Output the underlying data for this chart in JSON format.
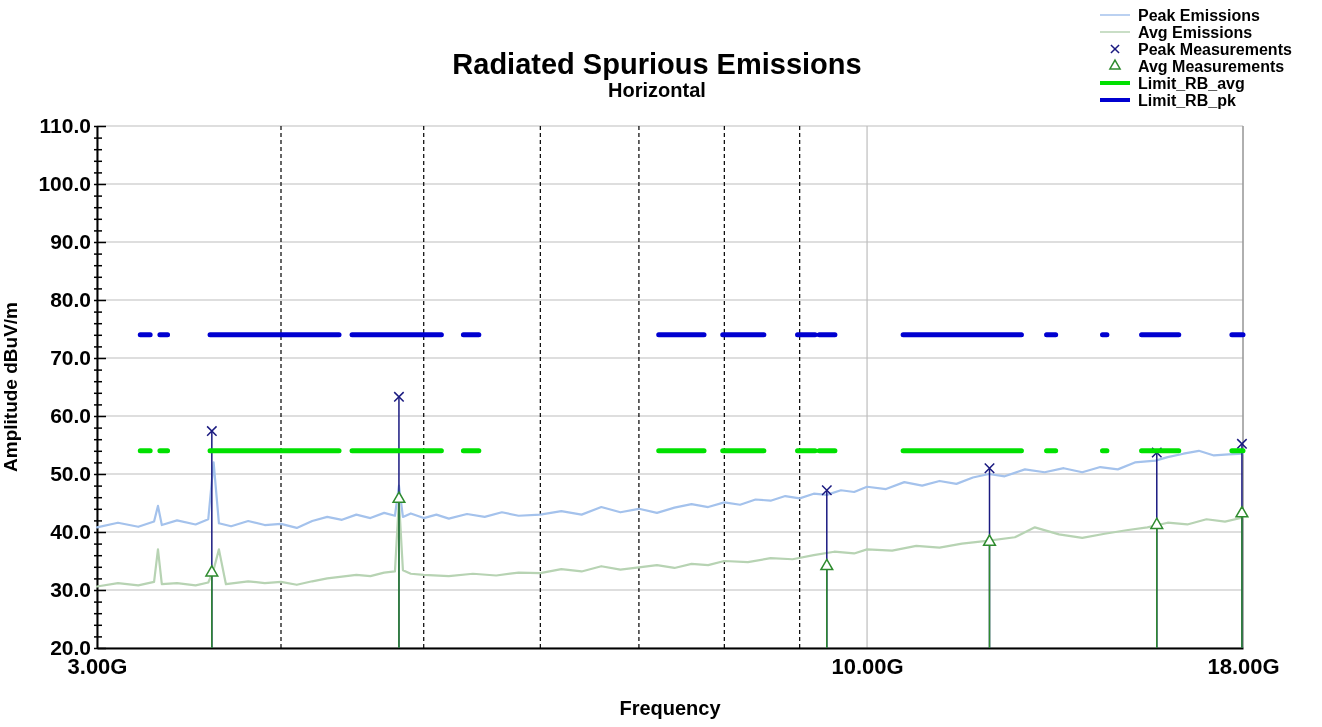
{
  "chart_data": {
    "type": "line",
    "title": "Radiated Spurious Emissions",
    "subtitle": "Horizontal",
    "xlabel": "Frequency",
    "ylabel": "Amplitude dBuV/m",
    "log": "x",
    "grid": true,
    "legend": "top right",
    "xlim": [
      3,
      18
    ],
    "ylim": [
      20,
      110
    ],
    "xticks": [
      {
        "value": 3,
        "label": "3.00G"
      },
      {
        "value": 4,
        "label": null
      },
      {
        "value": 5,
        "label": null
      },
      {
        "value": 6,
        "label": null
      },
      {
        "value": 7,
        "label": null
      },
      {
        "value": 8,
        "label": null
      },
      {
        "value": 9,
        "label": null
      },
      {
        "value": 10,
        "label": "10.00G"
      },
      {
        "value": 18,
        "label": "18.00G"
      }
    ],
    "yticks": [
      {
        "value": 20,
        "label": "20.0"
      },
      {
        "value": 22,
        "label": null
      },
      {
        "value": 24,
        "label": null
      },
      {
        "value": 26,
        "label": null
      },
      {
        "value": 28,
        "label": null
      },
      {
        "value": 30,
        "label": "30.0"
      },
      {
        "value": 32,
        "label": null
      },
      {
        "value": 34,
        "label": null
      },
      {
        "value": 36,
        "label": null
      },
      {
        "value": 38,
        "label": null
      },
      {
        "value": 40,
        "label": "40.0"
      },
      {
        "value": 42,
        "label": null
      },
      {
        "value": 44,
        "label": null
      },
      {
        "value": 46,
        "label": null
      },
      {
        "value": 48,
        "label": null
      },
      {
        "value": 50,
        "label": "50.0"
      },
      {
        "value": 52,
        "label": null
      },
      {
        "value": 54,
        "label": null
      },
      {
        "value": 56,
        "label": null
      },
      {
        "value": 58,
        "label": null
      },
      {
        "value": 60,
        "label": "60.0"
      },
      {
        "value": 62,
        "label": null
      },
      {
        "value": 64,
        "label": null
      },
      {
        "value": 66,
        "label": null
      },
      {
        "value": 68,
        "label": null
      },
      {
        "value": 70,
        "label": "70.0"
      },
      {
        "value": 72,
        "label": null
      },
      {
        "value": 74,
        "label": null
      },
      {
        "value": 76,
        "label": null
      },
      {
        "value": 78,
        "label": null
      },
      {
        "value": 80,
        "label": "80.0"
      },
      {
        "value": 82,
        "label": null
      },
      {
        "value": 84,
        "label": null
      },
      {
        "value": 86,
        "label": null
      },
      {
        "value": 88,
        "label": null
      },
      {
        "value": 90,
        "label": "90.0"
      },
      {
        "value": 92,
        "label": null
      },
      {
        "value": 94,
        "label": null
      },
      {
        "value": 96,
        "label": null
      },
      {
        "value": 98,
        "label": null
      },
      {
        "value": 100,
        "label": "100.0"
      },
      {
        "value": 102,
        "label": null
      },
      {
        "value": 104,
        "label": null
      },
      {
        "value": 106,
        "label": null
      },
      {
        "value": 108,
        "label": null
      },
      {
        "value": 110,
        "label": "110.0"
      }
    ],
    "series": [
      {
        "name": "Peak Emissions",
        "color": "#a4c2ec",
        "marker": "none",
        "line_style": "solid",
        "x": [
          3.0,
          3.1,
          3.2,
          3.28,
          3.3,
          3.32,
          3.4,
          3.5,
          3.57,
          3.6,
          3.63,
          3.7,
          3.8,
          3.9,
          4.0,
          4.1,
          4.2,
          4.3,
          4.4,
          4.5,
          4.6,
          4.7,
          4.78,
          4.81,
          4.84,
          4.9,
          5.0,
          5.1,
          5.2,
          5.35,
          5.5,
          5.65,
          5.8,
          6.0,
          6.2,
          6.4,
          6.6,
          6.8,
          7.0,
          7.2,
          7.4,
          7.6,
          7.8,
          8.0,
          8.2,
          8.4,
          8.6,
          8.8,
          9.0,
          9.2,
          9.39,
          9.6,
          9.8,
          10.0,
          10.3,
          10.6,
          10.9,
          11.2,
          11.5,
          11.8,
          12.1,
          12.4,
          12.8,
          13.2,
          13.6,
          14.0,
          14.4,
          14.8,
          15.2,
          15.7,
          16.0,
          16.4,
          16.8,
          17.2,
          17.6,
          18.0
        ],
        "values": [
          40.8,
          41.6,
          40.9,
          41.8,
          44.5,
          41.2,
          42.0,
          41.3,
          42.2,
          52,
          41.5,
          41.0,
          41.9,
          41.2,
          41.4,
          40.7,
          41.9,
          42.6,
          42.1,
          43.0,
          42.4,
          43.3,
          42.8,
          48,
          42.6,
          43.2,
          42.4,
          43.0,
          42.3,
          43.1,
          42.6,
          43.4,
          42.8,
          43.0,
          43.6,
          43.0,
          44.3,
          43.4,
          44.0,
          43.3,
          44.2,
          44.8,
          44.3,
          45.1,
          44.7,
          45.6,
          45.4,
          46.2,
          45.8,
          46.6,
          46.4,
          47.2,
          46.9,
          47.8,
          47.4,
          48.6,
          48.0,
          48.8,
          48.3,
          49.4,
          50.0,
          49.6,
          50.8,
          50.3,
          51.0,
          50.3,
          51.2,
          50.8,
          52.0,
          52.3,
          52.9,
          53.5,
          54.0,
          53.2,
          53.4,
          53.5
        ]
      },
      {
        "name": "Avg Emissions",
        "color": "#b7d3b3",
        "marker": "none",
        "line_style": "solid",
        "x": [
          3.0,
          3.1,
          3.2,
          3.28,
          3.3,
          3.32,
          3.4,
          3.5,
          3.57,
          3.6,
          3.63,
          3.67,
          3.8,
          3.9,
          4.0,
          4.1,
          4.2,
          4.3,
          4.4,
          4.5,
          4.6,
          4.7,
          4.78,
          4.81,
          4.84,
          4.9,
          5.0,
          5.2,
          5.4,
          5.6,
          5.8,
          6.0,
          6.2,
          6.4,
          6.6,
          6.8,
          7.0,
          7.2,
          7.4,
          7.6,
          7.8,
          8.0,
          8.3,
          8.6,
          8.9,
          9.2,
          9.5,
          9.8,
          10.0,
          10.4,
          10.8,
          11.2,
          11.6,
          12.1,
          12.6,
          13.0,
          13.5,
          14.0,
          14.5,
          15.0,
          15.5,
          16.0,
          16.5,
          17.0,
          17.5,
          18.0
        ],
        "values": [
          30.6,
          31.2,
          30.8,
          31.4,
          37,
          31.0,
          31.2,
          30.8,
          31.3,
          33.5,
          37,
          31.0,
          31.5,
          31.2,
          31.4,
          30.9,
          31.5,
          32.0,
          32.3,
          32.6,
          32.4,
          33.0,
          33.2,
          45.5,
          33.4,
          32.8,
          32.6,
          32.4,
          32.8,
          32.5,
          33.0,
          32.9,
          33.6,
          33.2,
          34.1,
          33.5,
          33.9,
          34.3,
          33.8,
          34.5,
          34.3,
          35.0,
          34.8,
          35.5,
          35.3,
          36.0,
          36.6,
          36.3,
          37.0,
          36.8,
          37.6,
          37.3,
          38.0,
          38.5,
          39.1,
          40.8,
          39.6,
          39.0,
          39.7,
          40.3,
          40.8,
          41.6,
          41.3,
          42.2,
          41.8,
          42.5
        ]
      },
      {
        "name": "Peak Measurements",
        "type": "lollipop",
        "color": "#1a1a80",
        "marker": "cross",
        "x": [
          3.59,
          4.81,
          9.39,
          12.11,
          15.73,
          17.97
        ],
        "values": [
          57.4,
          63.3,
          47.2,
          51.0,
          53.7,
          55.2
        ]
      },
      {
        "name": "Avg Measurements",
        "type": "lollipop",
        "color": "#2e8b2e",
        "marker": "triangle",
        "x": [
          3.59,
          4.81,
          9.39,
          12.11,
          15.73,
          17.97
        ],
        "values": [
          33.0,
          45.7,
          34.1,
          38.3,
          41.2,
          43.2
        ]
      },
      {
        "name": "Limit_RB_avg",
        "color": "#00e000",
        "marker": "none",
        "line_style": "solid",
        "x": [
          3.21,
          3.26,
          3.28,
          3.31,
          3.35,
          3.45,
          3.58,
          4.38,
          4.42,
          4.47,
          5.14,
          5.2,
          5.32,
          5.45,
          6.3,
          7.22,
          7.75,
          7.85,
          7.98,
          8.51,
          8.7,
          8.97,
          9.22,
          9.25,
          9.28,
          9.51,
          10.0,
          10.58,
          12.73,
          13.0,
          13.24,
          13.43,
          14.0,
          14.45,
          14.55,
          15.0,
          15.36,
          16.28,
          17.0,
          17.69,
          18.0
        ],
        "values": [
          54,
          54,
          null,
          54,
          54,
          null,
          54,
          54,
          null,
          54,
          54,
          null,
          54,
          54,
          null,
          54,
          54,
          null,
          54,
          54,
          null,
          54,
          54,
          null,
          54,
          54,
          null,
          54,
          54,
          null,
          54,
          54,
          null,
          54,
          54,
          null,
          54,
          54,
          null,
          54,
          54
        ]
      },
      {
        "name": "Limit_RB_pk",
        "color": "#0000d0",
        "marker": "none",
        "line_style": "solid",
        "x": [
          3.21,
          3.26,
          3.28,
          3.31,
          3.35,
          3.45,
          3.58,
          4.38,
          4.42,
          4.47,
          5.14,
          5.2,
          5.32,
          5.45,
          6.3,
          7.22,
          7.75,
          7.85,
          7.98,
          8.51,
          8.7,
          8.97,
          9.22,
          9.25,
          9.28,
          9.51,
          10.0,
          10.58,
          12.73,
          13.0,
          13.24,
          13.43,
          14.0,
          14.45,
          14.55,
          15.0,
          15.36,
          16.28,
          17.0,
          17.69,
          18.0
        ],
        "values": [
          74,
          74,
          null,
          74,
          74,
          null,
          74,
          74,
          null,
          74,
          74,
          null,
          74,
          74,
          null,
          74,
          74,
          null,
          74,
          74,
          null,
          74,
          74,
          null,
          74,
          74,
          null,
          74,
          74,
          null,
          74,
          74,
          null,
          74,
          74,
          null,
          74,
          74,
          null,
          74,
          74
        ]
      }
    ]
  }
}
